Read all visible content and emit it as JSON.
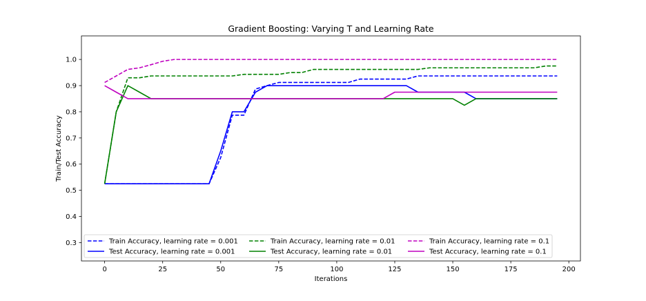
{
  "chart_data": {
    "type": "line",
    "title": "Gradient Boosting: Varying T and Learning Rate",
    "xlabel": "Iterations",
    "ylabel": "Train/Test Accuracy",
    "xlim": [
      -10,
      205
    ],
    "ylim": [
      0.23,
      1.09
    ],
    "xticks": [
      0,
      25,
      50,
      75,
      100,
      125,
      150,
      175,
      200
    ],
    "yticks": [
      0.3,
      0.4,
      0.5,
      0.6,
      0.7,
      0.8,
      0.9,
      1.0
    ],
    "xtick_labels": [
      "0",
      "25",
      "50",
      "75",
      "100",
      "125",
      "150",
      "175",
      "200"
    ],
    "ytick_labels": [
      "0.3",
      "0.4",
      "0.5",
      "0.6",
      "0.7",
      "0.8",
      "0.9",
      "1.0"
    ],
    "grid": false,
    "legend_position": "lower-center",
    "x": [
      0,
      5,
      10,
      15,
      20,
      25,
      30,
      35,
      40,
      45,
      50,
      55,
      60,
      65,
      70,
      75,
      80,
      85,
      90,
      95,
      100,
      105,
      110,
      115,
      120,
      125,
      130,
      135,
      140,
      145,
      150,
      155,
      160,
      165,
      170,
      175,
      180,
      185,
      190,
      195
    ],
    "series": [
      {
        "name": "Train Accuracy, learning rate = 0.001",
        "color": "#0000ff",
        "dash": "dashed",
        "values": [
          0.525,
          0.525,
          0.525,
          0.525,
          0.525,
          0.525,
          0.525,
          0.525,
          0.525,
          0.525,
          0.625,
          0.787,
          0.787,
          0.887,
          0.9,
          0.912,
          0.912,
          0.912,
          0.912,
          0.912,
          0.912,
          0.912,
          0.925,
          0.925,
          0.925,
          0.925,
          0.925,
          0.937,
          0.937,
          0.937,
          0.937,
          0.937,
          0.937,
          0.937,
          0.937,
          0.937,
          0.937,
          0.937,
          0.937,
          0.937
        ]
      },
      {
        "name": "Test Accuracy, learning rate = 0.001",
        "color": "#0000ff",
        "dash": "solid",
        "values": [
          0.525,
          0.525,
          0.525,
          0.525,
          0.525,
          0.525,
          0.525,
          0.525,
          0.525,
          0.525,
          0.65,
          0.8,
          0.8,
          0.875,
          0.9,
          0.9,
          0.9,
          0.9,
          0.9,
          0.9,
          0.9,
          0.9,
          0.9,
          0.9,
          0.9,
          0.9,
          0.9,
          0.875,
          0.875,
          0.875,
          0.875,
          0.875,
          0.85,
          0.85,
          0.85,
          0.85,
          0.85,
          0.85,
          0.85,
          0.85
        ]
      },
      {
        "name": "Train Accuracy, learning rate = 0.01",
        "color": "#008000",
        "dash": "dashed",
        "values": [
          0.525,
          0.8,
          0.93,
          0.93,
          0.937,
          0.937,
          0.937,
          0.937,
          0.937,
          0.937,
          0.937,
          0.937,
          0.943,
          0.943,
          0.943,
          0.943,
          0.95,
          0.95,
          0.962,
          0.962,
          0.962,
          0.962,
          0.962,
          0.962,
          0.962,
          0.962,
          0.962,
          0.962,
          0.968,
          0.968,
          0.968,
          0.968,
          0.968,
          0.968,
          0.968,
          0.968,
          0.968,
          0.968,
          0.975,
          0.975
        ]
      },
      {
        "name": "Test Accuracy, learning rate = 0.01",
        "color": "#008000",
        "dash": "solid",
        "values": [
          0.525,
          0.8,
          0.9,
          0.875,
          0.85,
          0.85,
          0.85,
          0.85,
          0.85,
          0.85,
          0.85,
          0.85,
          0.85,
          0.85,
          0.85,
          0.85,
          0.85,
          0.85,
          0.85,
          0.85,
          0.85,
          0.85,
          0.85,
          0.85,
          0.85,
          0.85,
          0.85,
          0.85,
          0.85,
          0.85,
          0.85,
          0.825,
          0.85,
          0.85,
          0.85,
          0.85,
          0.85,
          0.85,
          0.85,
          0.85
        ]
      },
      {
        "name": "Train Accuracy, learning rate = 0.1",
        "color": "#bf00bf",
        "dash": "dashed",
        "values": [
          0.912,
          0.937,
          0.962,
          0.968,
          0.98,
          0.993,
          1.0,
          1.0,
          1.0,
          1.0,
          1.0,
          1.0,
          1.0,
          1.0,
          1.0,
          1.0,
          1.0,
          1.0,
          1.0,
          1.0,
          1.0,
          1.0,
          1.0,
          1.0,
          1.0,
          1.0,
          1.0,
          1.0,
          1.0,
          1.0,
          1.0,
          1.0,
          1.0,
          1.0,
          1.0,
          1.0,
          1.0,
          1.0,
          1.0,
          1.0
        ]
      },
      {
        "name": "Test Accuracy, learning rate = 0.1",
        "color": "#bf00bf",
        "dash": "solid",
        "values": [
          0.9,
          0.875,
          0.85,
          0.85,
          0.85,
          0.85,
          0.85,
          0.85,
          0.85,
          0.85,
          0.85,
          0.85,
          0.85,
          0.85,
          0.85,
          0.85,
          0.85,
          0.85,
          0.85,
          0.85,
          0.85,
          0.85,
          0.85,
          0.85,
          0.85,
          0.875,
          0.875,
          0.875,
          0.875,
          0.875,
          0.875,
          0.875,
          0.875,
          0.875,
          0.875,
          0.875,
          0.875,
          0.875,
          0.875,
          0.875
        ]
      }
    ]
  }
}
